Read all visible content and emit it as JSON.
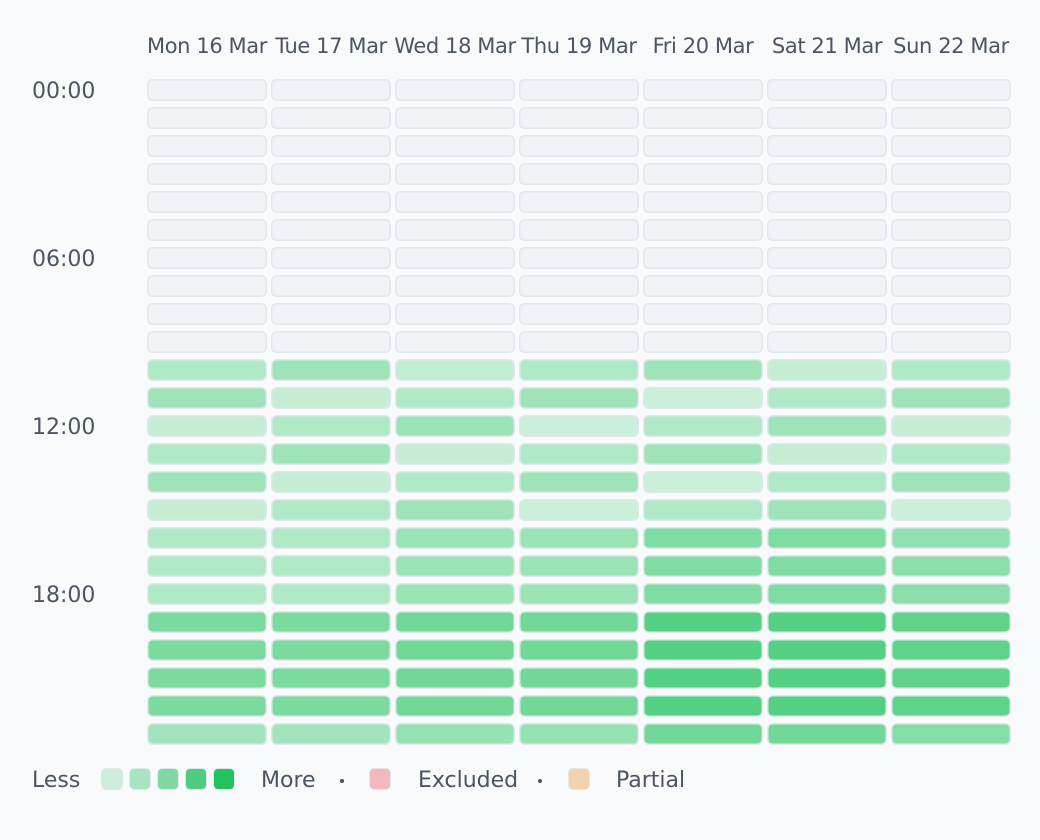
{
  "chart_data": {
    "type": "heatmap",
    "columns": [
      "Mon 16 Mar",
      "Tue 17 Mar",
      "Wed 18 Mar",
      "Thu 19 Mar",
      "Fri 20 Mar",
      "Sat 21 Mar",
      "Sun 22 Mar"
    ],
    "row_tick_labels": [
      "00:00",
      "06:00",
      "12:00",
      "18:00"
    ],
    "row_tick_rows": [
      0,
      6,
      12,
      18
    ],
    "rows": 24,
    "scale_max": 5,
    "values": [
      [
        0,
        0,
        0,
        0,
        0,
        0,
        0
      ],
      [
        0,
        0,
        0,
        0,
        0,
        0,
        0
      ],
      [
        0,
        0,
        0,
        0,
        0,
        0,
        0
      ],
      [
        0,
        0,
        0,
        0,
        0,
        0,
        0
      ],
      [
        0,
        0,
        0,
        0,
        0,
        0,
        0
      ],
      [
        0,
        0,
        0,
        0,
        0,
        0,
        0
      ],
      [
        0,
        0,
        0,
        0,
        0,
        0,
        0
      ],
      [
        0,
        0,
        0,
        0,
        0,
        0,
        0
      ],
      [
        0,
        0,
        0,
        0,
        0,
        0,
        0
      ],
      [
        0,
        0,
        0,
        0,
        0,
        0,
        0
      ],
      [
        1.8,
        2.2,
        1.4,
        1.8,
        2.2,
        1.3,
        1.8
      ],
      [
        2.2,
        1.3,
        1.8,
        2.2,
        1.2,
        1.8,
        2.2
      ],
      [
        1.3,
        1.8,
        2.3,
        1.2,
        1.8,
        2.2,
        1.3
      ],
      [
        1.8,
        2.2,
        1.3,
        1.8,
        2.2,
        1.3,
        1.8
      ],
      [
        2.2,
        1.3,
        1.8,
        2.2,
        1.2,
        1.8,
        2.2
      ],
      [
        1.3,
        1.8,
        2.2,
        1.2,
        1.8,
        2.2,
        1.2
      ],
      [
        1.8,
        1.8,
        2.3,
        2.3,
        2.9,
        2.9,
        2.5
      ],
      [
        1.8,
        1.8,
        2.3,
        2.3,
        2.9,
        2.9,
        2.6
      ],
      [
        1.8,
        1.8,
        2.3,
        2.3,
        2.9,
        2.9,
        2.6
      ],
      [
        3.0,
        3.0,
        3.2,
        3.2,
        3.9,
        3.9,
        3.6
      ],
      [
        3.0,
        3.0,
        3.2,
        3.2,
        3.9,
        3.9,
        3.6
      ],
      [
        3.0,
        3.0,
        3.2,
        3.2,
        3.9,
        3.9,
        3.6
      ],
      [
        3.0,
        3.0,
        3.2,
        3.2,
        3.9,
        3.9,
        3.6
      ],
      [
        2.1,
        2.1,
        2.4,
        2.4,
        3.2,
        3.2,
        2.8
      ]
    ],
    "colors": {
      "empty": "#f1f3f6",
      "empty_border": "#e2e7ed",
      "scale_low": "#d3f2df",
      "scale_high": "#22c35e",
      "excluded": "#f2b8bc",
      "partial": "#f2d2ac"
    },
    "legend": {
      "less_label": "Less",
      "more_label": "More",
      "swatches": [
        "#cdeedc",
        "#a8e4c0",
        "#7ed9a2",
        "#4fcc7f",
        "#22c35e"
      ],
      "excluded_label": "Excluded",
      "partial_label": "Partial"
    }
  }
}
